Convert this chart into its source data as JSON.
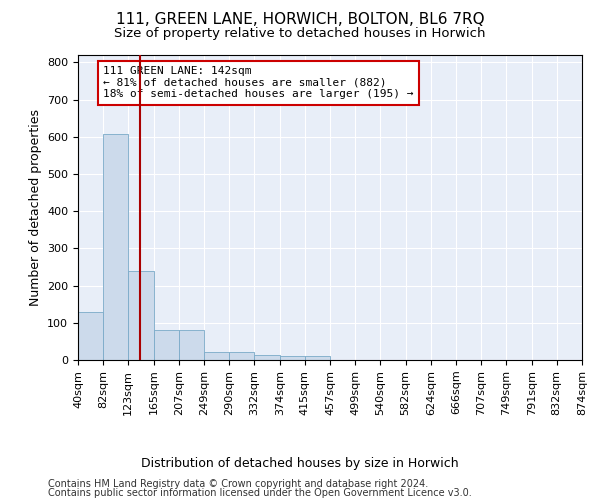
{
  "title": "111, GREEN LANE, HORWICH, BOLTON, BL6 7RQ",
  "subtitle": "Size of property relative to detached houses in Horwich",
  "xlabel": "Distribution of detached houses by size in Horwich",
  "ylabel": "Number of detached properties",
  "bar_color": "#ccdaeb",
  "bar_edge_color": "#7aaac8",
  "background_color": "#e8eef8",
  "grid_color": "#ffffff",
  "red_line_x": 142,
  "annotation_text": "111 GREEN LANE: 142sqm\n← 81% of detached houses are smaller (882)\n18% of semi-detached houses are larger (195) →",
  "footer_line1": "Contains HM Land Registry data © Crown copyright and database right 2024.",
  "footer_line2": "Contains public sector information licensed under the Open Government Licence v3.0.",
  "bin_edges": [
    40,
    82,
    123,
    165,
    207,
    249,
    290,
    332,
    374,
    415,
    457,
    499,
    540,
    582,
    624,
    666,
    707,
    749,
    791,
    832,
    874
  ],
  "bar_heights": [
    128,
    607,
    238,
    80,
    80,
    22,
    22,
    13,
    10,
    10,
    0,
    0,
    0,
    0,
    0,
    0,
    0,
    0,
    0,
    0
  ],
  "ylim": [
    0,
    820
  ],
  "yticks": [
    0,
    100,
    200,
    300,
    400,
    500,
    600,
    700,
    800
  ],
  "title_fontsize": 11,
  "subtitle_fontsize": 9.5,
  "xlabel_fontsize": 9,
  "ylabel_fontsize": 9,
  "tick_fontsize": 8,
  "annotation_fontsize": 8,
  "footer_fontsize": 7
}
